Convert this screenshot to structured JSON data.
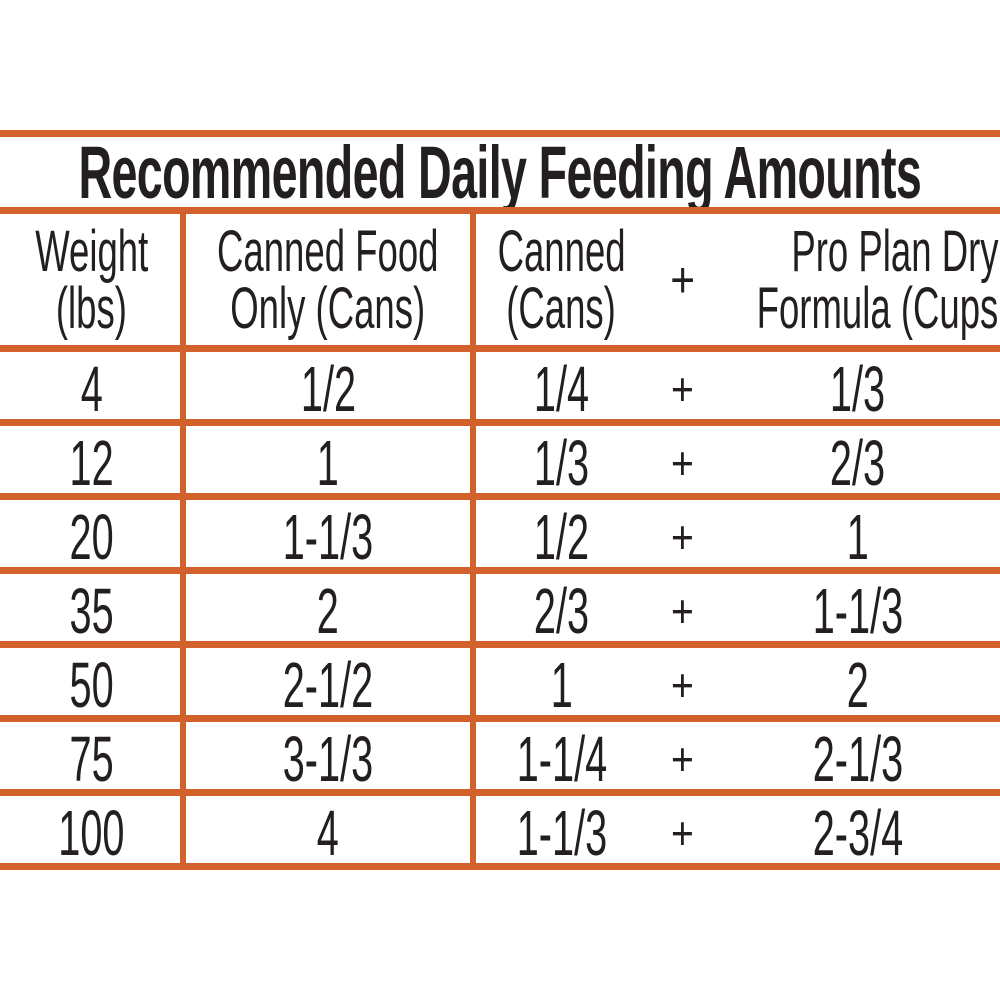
{
  "table": {
    "title": "Recommended Daily Feeding Amounts",
    "columns": {
      "weight": {
        "line1": "Weight",
        "line2": "(lbs)"
      },
      "canned_only": {
        "line1": "Canned Food",
        "line2": "Only (Cans)"
      },
      "canned": {
        "line1": "Canned",
        "line2": "(Cans)"
      },
      "plus": {
        "label": "+"
      },
      "dry": {
        "line1": "Pro Plan Dry",
        "line2": "Formula (Cups"
      }
    },
    "rows": [
      {
        "weight": "4",
        "canned_only": "1/2",
        "canned": "1/4",
        "plus": "+",
        "dry": "1/3"
      },
      {
        "weight": "12",
        "canned_only": "1",
        "canned": "1/3",
        "plus": "+",
        "dry": "2/3"
      },
      {
        "weight": "20",
        "canned_only": "1-1/3",
        "canned": "1/2",
        "plus": "+",
        "dry": "1"
      },
      {
        "weight": "35",
        "canned_only": "2",
        "canned": "2/3",
        "plus": "+",
        "dry": "1-1/3"
      },
      {
        "weight": "50",
        "canned_only": "2-1/2",
        "canned": "1",
        "plus": "+",
        "dry": "2"
      },
      {
        "weight": "75",
        "canned_only": "3-1/3",
        "canned": "1-1/4",
        "plus": "+",
        "dry": "2-1/3"
      },
      {
        "weight": "100",
        "canned_only": "4",
        "canned": "1-1/3",
        "plus": "+",
        "dry": "2-3/4"
      }
    ]
  },
  "colors": {
    "accent": "#d2612b",
    "text": "#231f20",
    "background": "#ffffff"
  }
}
